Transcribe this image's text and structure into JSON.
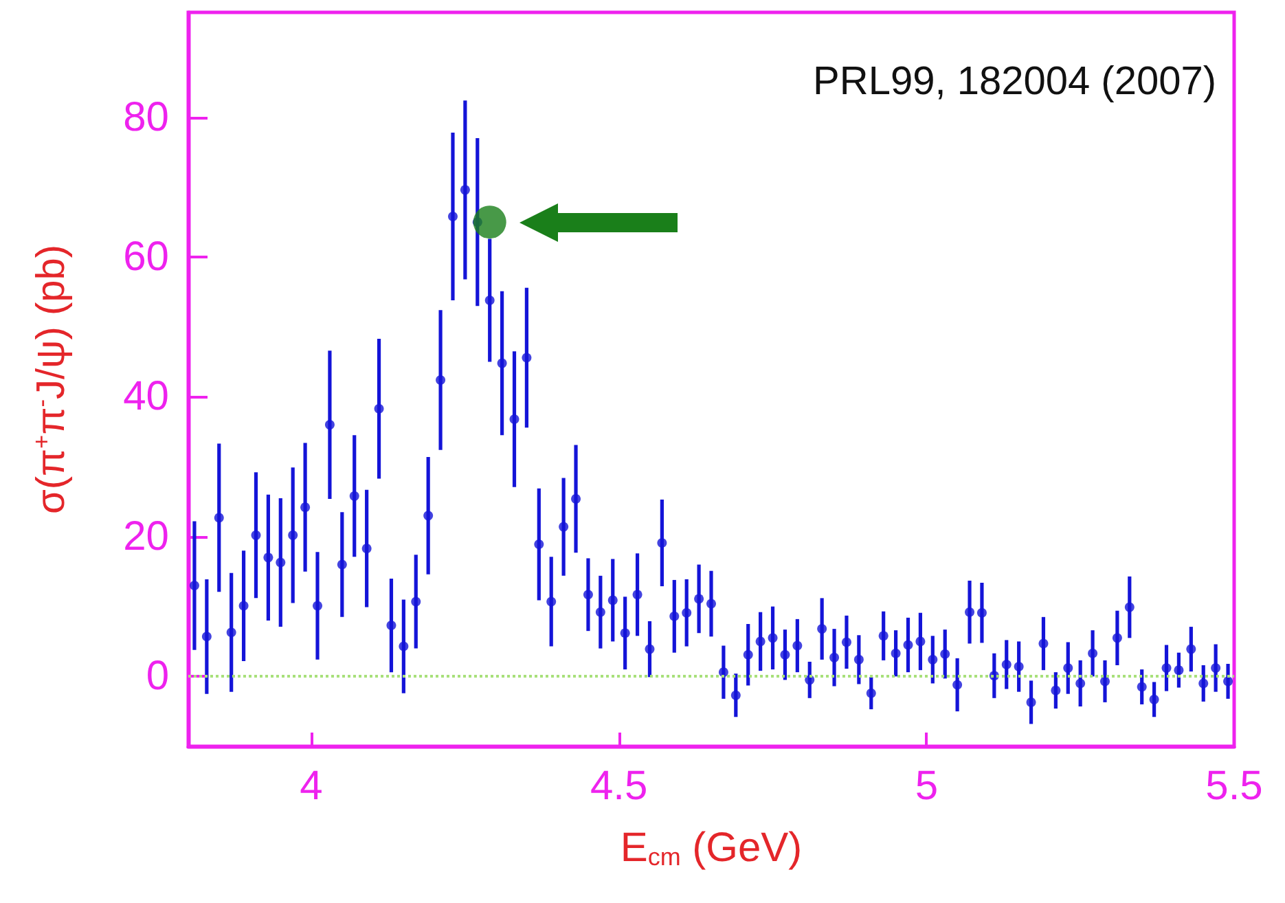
{
  "chart_data": {
    "type": "scatter",
    "xlabel": "E$_{cm}$ (GeV)",
    "ylabel": "σ(π$^{+}$π$^{-}$J/ψ) (pb)",
    "annotations": [
      "PRL99, 182004 (2007)"
    ],
    "xlim": [
      3.8,
      5.5
    ],
    "xticks": [
      4,
      4.5,
      5,
      5.5
    ],
    "ylim": [
      -10,
      95
    ],
    "yticks": [
      0,
      20,
      40,
      60,
      80
    ],
    "grid": false,
    "legend": false,
    "marker": "circle",
    "ref_lines": [
      {
        "axis": "y",
        "value": 0,
        "color": "#a8e07a",
        "line_style": "dotted"
      }
    ],
    "series": [
      {
        "color": "#1414d8",
        "x": [
          3.81,
          3.83,
          3.85,
          3.87,
          3.89,
          3.91,
          3.93,
          3.95,
          3.97,
          3.99,
          4.01,
          4.03,
          4.05,
          4.07,
          4.09,
          4.11,
          4.13,
          4.15,
          4.17,
          4.19,
          4.21,
          4.23,
          4.25,
          4.27,
          4.29,
          4.31,
          4.33,
          4.35,
          4.37,
          4.39,
          4.41,
          4.43,
          4.45,
          4.47,
          4.49,
          4.51,
          4.53,
          4.55,
          4.57,
          4.59,
          4.61,
          4.63,
          4.65,
          4.67,
          4.69,
          4.71,
          4.73,
          4.75,
          4.77,
          4.79,
          4.81,
          4.83,
          4.85,
          4.87,
          4.89,
          4.91,
          4.93,
          4.95,
          4.97,
          4.99,
          5.01,
          5.03,
          5.05,
          5.07,
          5.09,
          5.11,
          5.13,
          5.15,
          5.17,
          5.19,
          5.21,
          5.23,
          5.25,
          5.27,
          5.29,
          5.31,
          5.33,
          5.35,
          5.37,
          5.39,
          5.41,
          5.43,
          5.45,
          5.47,
          5.49
        ],
        "values": [
          13.0,
          5.7,
          22.7,
          6.3,
          10.1,
          20.2,
          17.0,
          16.3,
          20.2,
          24.2,
          10.1,
          36.0,
          16.0,
          25.8,
          18.3,
          38.3,
          7.3,
          4.3,
          10.7,
          23.0,
          42.4,
          65.8,
          69.6,
          65,
          53.8,
          44.8,
          36.8,
          45.6,
          18.9,
          10.7,
          21.4,
          25.4,
          11.7,
          9.2,
          10.9,
          6.2,
          11.7,
          3.9,
          19.1,
          8.6,
          9.1,
          11.1,
          10.4,
          0.6,
          -2.7,
          3.1,
          5.0,
          5.5,
          3.1,
          4.4,
          -0.5,
          6.8,
          2.7,
          4.9,
          2.4,
          -2.4,
          5.8,
          3.3,
          4.5,
          5.0,
          2.4,
          3.2,
          -1.2,
          9.2,
          9.1,
          0.1,
          1.7,
          1.4,
          -3.7,
          4.7,
          -2.0,
          1.2,
          -1.0,
          3.3,
          -0.7,
          5.5,
          9.9,
          -1.5,
          -3.3,
          1.2,
          0.9,
          3.9,
          -1.0,
          1.2,
          -0.7
        ],
        "errors": [
          9.2,
          8.2,
          10.6,
          8.5,
          7.9,
          9,
          9,
          9.2,
          9.7,
          9.2,
          7.7,
          10.6,
          7.5,
          8.7,
          8.4,
          10,
          6.7,
          6.7,
          6.7,
          8.4,
          10,
          12,
          12.8,
          12,
          8.8,
          10.3,
          9.7,
          10,
          8,
          6.4,
          7,
          7.7,
          5.2,
          5.2,
          5.9,
          5.2,
          5.9,
          4,
          6.2,
          5.2,
          4.8,
          4.9,
          4.7,
          3.8,
          3.1,
          4.4,
          4.2,
          4.5,
          3.6,
          3.8,
          2.6,
          4.4,
          4.1,
          3.8,
          3.5,
          2.3,
          3.5,
          3.3,
          3.9,
          4.1,
          3.4,
          3.5,
          3.8,
          4.5,
          4.3,
          3.2,
          3.5,
          3.6,
          3.1,
          3.8,
          2.6,
          3.7,
          3.3,
          3.3,
          3,
          3.9,
          4.4,
          2.5,
          2.5,
          3.3,
          2.5,
          3.2,
          2.6,
          3.4,
          2.5
        ]
      },
      {
        "color": "#1a7f1a",
        "x": [
          4.29
        ],
        "values": [
          65
        ]
      }
    ]
  }
}
